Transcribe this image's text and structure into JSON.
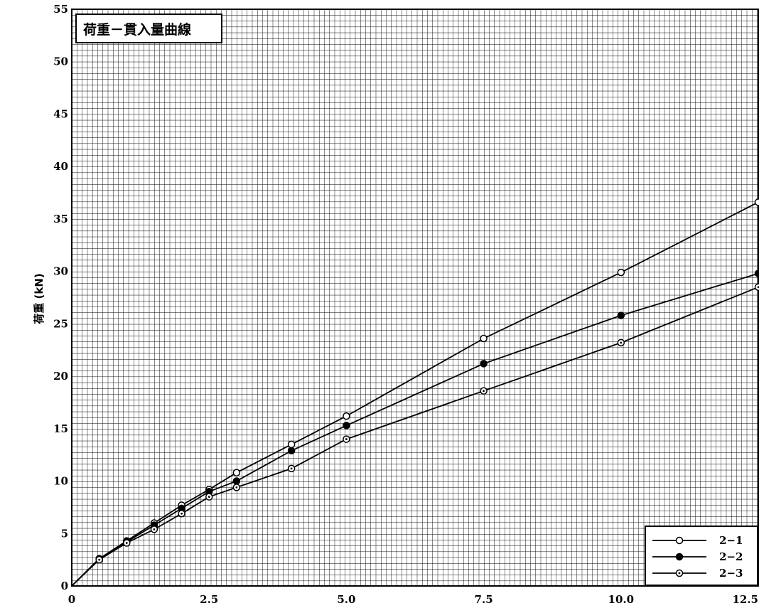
{
  "chart_data": {
    "type": "line",
    "title": "荷重－貫入量曲線",
    "ylabel": "荷重 (kN)",
    "xlabel": "",
    "xlim": [
      0,
      12.5
    ],
    "ylim": [
      0,
      55
    ],
    "x_ticks": [
      "0",
      "2.5",
      "5.0",
      "7.5",
      "10.0",
      "12.5"
    ],
    "y_ticks": [
      "0",
      "5",
      "10",
      "15",
      "20",
      "25",
      "30",
      "35",
      "40",
      "45",
      "50",
      "55"
    ],
    "grid": true,
    "legend_position": "bottom-right",
    "series": [
      {
        "name": "2−1",
        "marker": "open-circle",
        "points": [
          [
            0,
            0
          ],
          [
            0.5,
            2.6
          ],
          [
            1.0,
            4.3
          ],
          [
            1.5,
            6.0
          ],
          [
            2.0,
            7.7
          ],
          [
            2.5,
            9.2
          ],
          [
            3.0,
            10.8
          ],
          [
            4.0,
            13.5
          ],
          [
            5.0,
            16.2
          ],
          [
            7.5,
            23.6
          ],
          [
            10.0,
            29.9
          ],
          [
            12.5,
            36.6
          ]
        ]
      },
      {
        "name": "2−2",
        "marker": "filled-circle",
        "points": [
          [
            0,
            0
          ],
          [
            0.5,
            2.6
          ],
          [
            1.0,
            4.2
          ],
          [
            1.5,
            5.8
          ],
          [
            2.0,
            7.4
          ],
          [
            2.5,
            9.0
          ],
          [
            3.0,
            10.0
          ],
          [
            4.0,
            12.9
          ],
          [
            5.0,
            15.3
          ],
          [
            7.5,
            21.2
          ],
          [
            10.0,
            25.8
          ],
          [
            12.5,
            29.8
          ]
        ]
      },
      {
        "name": "2−3",
        "marker": "dotted-circle",
        "points": [
          [
            0,
            0
          ],
          [
            0.5,
            2.5
          ],
          [
            1.0,
            4.1
          ],
          [
            1.5,
            5.4
          ],
          [
            2.0,
            6.9
          ],
          [
            2.5,
            8.5
          ],
          [
            3.0,
            9.4
          ],
          [
            4.0,
            11.2
          ],
          [
            5.0,
            14.0
          ],
          [
            7.5,
            18.6
          ],
          [
            10.0,
            23.2
          ],
          [
            12.5,
            28.5
          ]
        ]
      }
    ]
  }
}
